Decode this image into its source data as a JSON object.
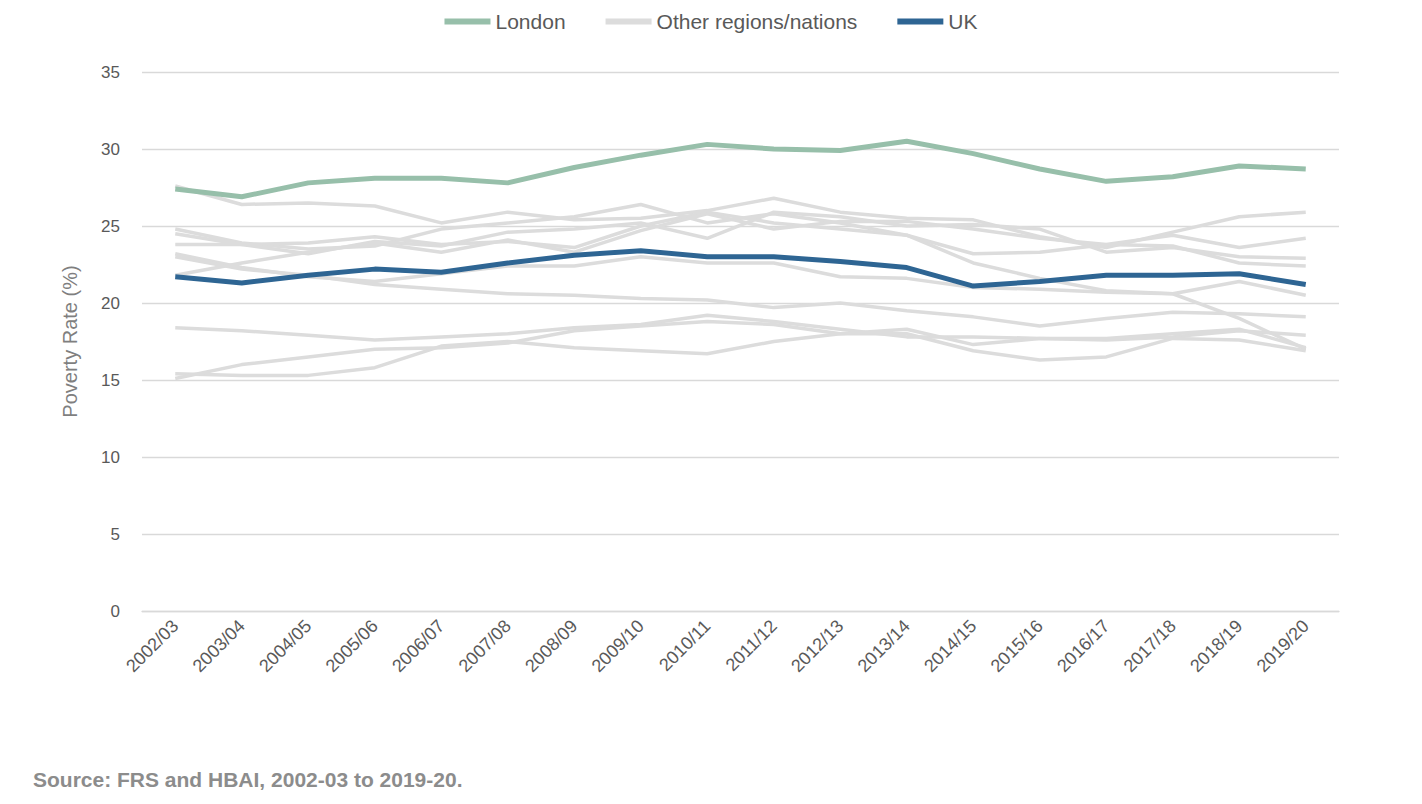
{
  "chart_data": {
    "type": "line",
    "y_label": "Poverty Rate (%)",
    "source": "Source: FRS and HBAI, 2002-03 to 2019-20.",
    "categories": [
      "2002/03",
      "2003/04",
      "2004/05",
      "2005/06",
      "2006/07",
      "2007/08",
      "2008/09",
      "2009/10",
      "2010/11",
      "2011/12",
      "2012/13",
      "2013/14",
      "2014/15",
      "2015/16",
      "2016/17",
      "2017/18",
      "2018/19",
      "2019/20"
    ],
    "ylim": [
      0,
      35
    ],
    "yticks": [
      0,
      5,
      10,
      15,
      20,
      25,
      30,
      35
    ],
    "grid": true,
    "legend": "top",
    "series": [
      {
        "name": "London",
        "color": "#97bfaa",
        "values": [
          27.4,
          26.9,
          27.8,
          28.1,
          28.1,
          27.8,
          28.8,
          29.6,
          30.3,
          30.0,
          29.9,
          30.5,
          29.7,
          28.7,
          27.9,
          28.2,
          28.9,
          28.7
        ]
      },
      {
        "name": "Other regions/nations",
        "color": "#dcdcdc",
        "values": [
          27.6,
          26.4,
          26.5,
          26.3,
          25.2,
          25.9,
          25.4,
          25.5,
          26.0,
          26.8,
          25.9,
          25.5,
          25.4,
          24.3,
          23.6,
          24.6,
          25.6,
          25.9
        ]
      },
      {
        "name": "Other regions/nations",
        "color": "#dcdcdc",
        "values": [
          24.8,
          23.9,
          23.5,
          23.7,
          24.8,
          25.2,
          25.6,
          26.4,
          25.2,
          25.8,
          25.2,
          24.4,
          22.6,
          21.6,
          20.8,
          20.6,
          19.0,
          17.0
        ]
      },
      {
        "name": "Other regions/nations",
        "color": "#dcdcdc",
        "values": [
          24.5,
          23.8,
          23.2,
          24.0,
          23.7,
          24.6,
          24.8,
          25.2,
          24.2,
          25.9,
          25.6,
          25.0,
          25.1,
          24.8,
          23.3,
          23.6,
          23.0,
          22.9
        ]
      },
      {
        "name": "Other regions/nations",
        "color": "#dcdcdc",
        "values": [
          23.8,
          23.8,
          23.9,
          24.3,
          23.8,
          24.0,
          23.6,
          25.0,
          25.9,
          25.2,
          24.8,
          24.4,
          23.2,
          23.3,
          23.8,
          24.4,
          23.6,
          24.2
        ]
      },
      {
        "name": "Other regions/nations",
        "color": "#dcdcdc",
        "values": [
          23.2,
          22.3,
          21.7,
          21.4,
          21.9,
          22.4,
          22.4,
          23.0,
          22.6,
          22.6,
          21.7,
          21.6,
          21.0,
          20.9,
          20.7,
          20.6,
          21.4,
          20.5
        ]
      },
      {
        "name": "Other regions/nations",
        "color": "#dcdcdc",
        "values": [
          23.0,
          22.2,
          21.8,
          21.2,
          20.9,
          20.6,
          20.5,
          20.3,
          20.2,
          19.7,
          20.0,
          19.5,
          19.1,
          18.5,
          19.0,
          19.4,
          19.3,
          19.1
        ]
      },
      {
        "name": "Other regions/nations",
        "color": "#dcdcdc",
        "values": [
          21.8,
          22.6,
          23.3,
          23.9,
          23.3,
          24.1,
          23.3,
          24.7,
          25.8,
          24.8,
          25.3,
          25.3,
          24.8,
          24.2,
          23.8,
          23.7,
          22.6,
          22.4
        ]
      },
      {
        "name": "Other regions/nations",
        "color": "#dcdcdc",
        "values": [
          18.4,
          18.2,
          17.9,
          17.6,
          17.8,
          18.0,
          18.4,
          18.6,
          19.2,
          18.8,
          18.3,
          17.8,
          17.8,
          17.7,
          17.6,
          17.8,
          18.2,
          17.9
        ]
      },
      {
        "name": "Other regions/nations",
        "color": "#dcdcdc",
        "values": [
          15.4,
          15.3,
          15.3,
          15.8,
          17.2,
          17.5,
          17.1,
          16.9,
          16.7,
          17.5,
          18.0,
          18.3,
          17.3,
          17.7,
          17.7,
          18.0,
          18.3,
          17.1
        ]
      },
      {
        "name": "Other regions/nations",
        "color": "#dcdcdc",
        "values": [
          15.1,
          16.0,
          16.5,
          17.0,
          17.1,
          17.4,
          18.2,
          18.5,
          18.8,
          18.6,
          18.0,
          18.0,
          16.9,
          16.3,
          16.5,
          17.7,
          17.6,
          16.9
        ]
      },
      {
        "name": "UK",
        "color": "#2e6593",
        "values": [
          21.7,
          21.3,
          21.8,
          22.2,
          22.0,
          22.6,
          23.1,
          23.4,
          23.0,
          23.0,
          22.7,
          22.3,
          21.1,
          21.4,
          21.8,
          21.8,
          21.9,
          21.2
        ]
      }
    ]
  }
}
